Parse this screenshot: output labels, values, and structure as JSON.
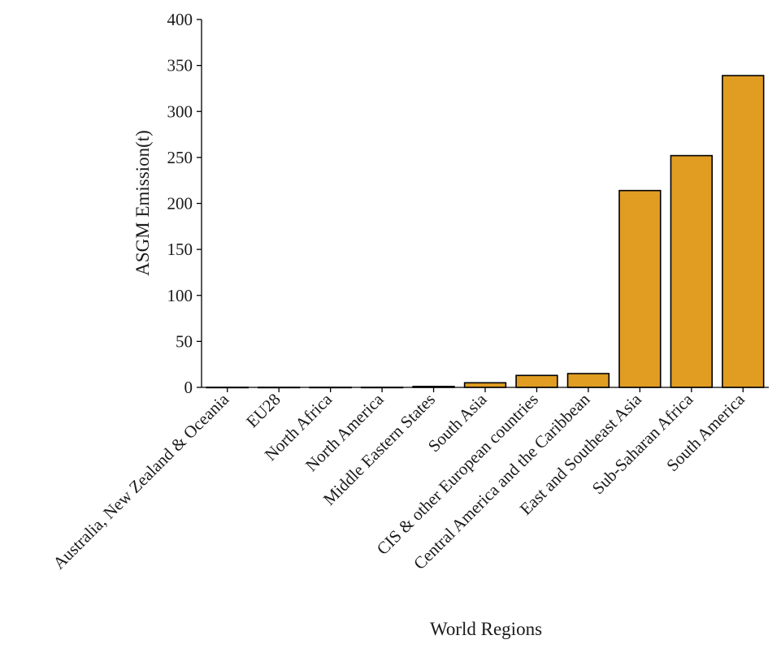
{
  "chart_data": {
    "type": "bar",
    "title": "",
    "xlabel": "World Regions",
    "ylabel": "ASGM Emission(t)",
    "categories": [
      "Australia, New Zealand & Oceania",
      "EU28",
      "North Africa",
      "North America",
      "Middle Eastern States",
      "South Asia",
      "CIS & other European countries",
      "Central America and the Caribbean",
      "East and Southeast Asia",
      "Sub-Saharan Africa",
      "South America"
    ],
    "values": [
      0.1,
      0.1,
      0.1,
      0.1,
      1,
      5,
      13,
      15,
      214,
      252,
      339
    ],
    "ylim": [
      0,
      400
    ],
    "yticks": [
      0,
      50,
      100,
      150,
      200,
      250,
      300,
      350,
      400
    ],
    "bar_color": "#e09d22",
    "grid": false,
    "legend": "none"
  }
}
